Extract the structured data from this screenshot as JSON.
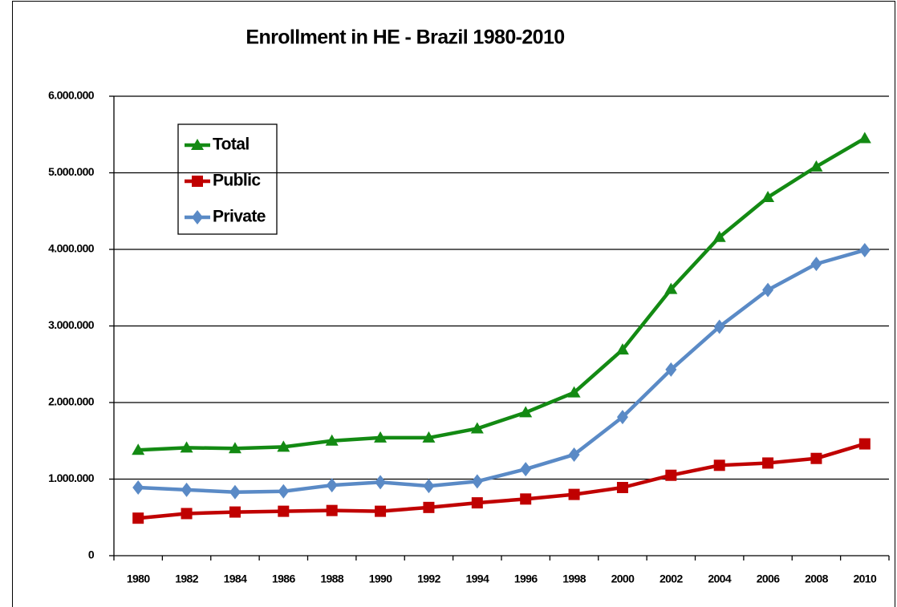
{
  "chart_data": {
    "type": "line",
    "title": "Enrollment in HE - Brazil 1980-2010",
    "categories": [
      "1980",
      "1982",
      "1984",
      "1986",
      "1988",
      "1990",
      "1992",
      "1994",
      "1996",
      "1998",
      "2000",
      "2002",
      "2004",
      "2006",
      "2008",
      "2010"
    ],
    "series": [
      {
        "name": "Total",
        "color": "#138a13",
        "marker": "triangle",
        "values": [
          1380000,
          1410000,
          1400000,
          1420000,
          1500000,
          1540000,
          1540000,
          1660000,
          1870000,
          2130000,
          2690000,
          3480000,
          4160000,
          4680000,
          5080000,
          5450000
        ]
      },
      {
        "name": "Public",
        "color": "#c00000",
        "marker": "square",
        "values": [
          490000,
          550000,
          570000,
          580000,
          590000,
          580000,
          630000,
          690000,
          740000,
          800000,
          890000,
          1050000,
          1180000,
          1210000,
          1270000,
          1460000
        ]
      },
      {
        "name": "Private",
        "color": "#5a8ac6",
        "marker": "diamond",
        "values": [
          890000,
          860000,
          830000,
          840000,
          920000,
          960000,
          910000,
          970000,
          1130000,
          1320000,
          1810000,
          2430000,
          2990000,
          3470000,
          3810000,
          3990000
        ]
      }
    ],
    "ylim": [
      0,
      6000000
    ],
    "yticks": [
      0,
      {
        "value": 1000000,
        "label": "1.000.000"
      },
      {
        "value": 2000000,
        "label": "2.000.000"
      },
      {
        "value": 3000000,
        "label": "3.000.000"
      },
      {
        "value": 4000000,
        "label": "4.000.000"
      },
      {
        "value": 5000000,
        "label": "5.000.000"
      },
      {
        "value": 6000000,
        "label": "6.000.000"
      }
    ],
    "grid": true,
    "legend": "upper left"
  }
}
